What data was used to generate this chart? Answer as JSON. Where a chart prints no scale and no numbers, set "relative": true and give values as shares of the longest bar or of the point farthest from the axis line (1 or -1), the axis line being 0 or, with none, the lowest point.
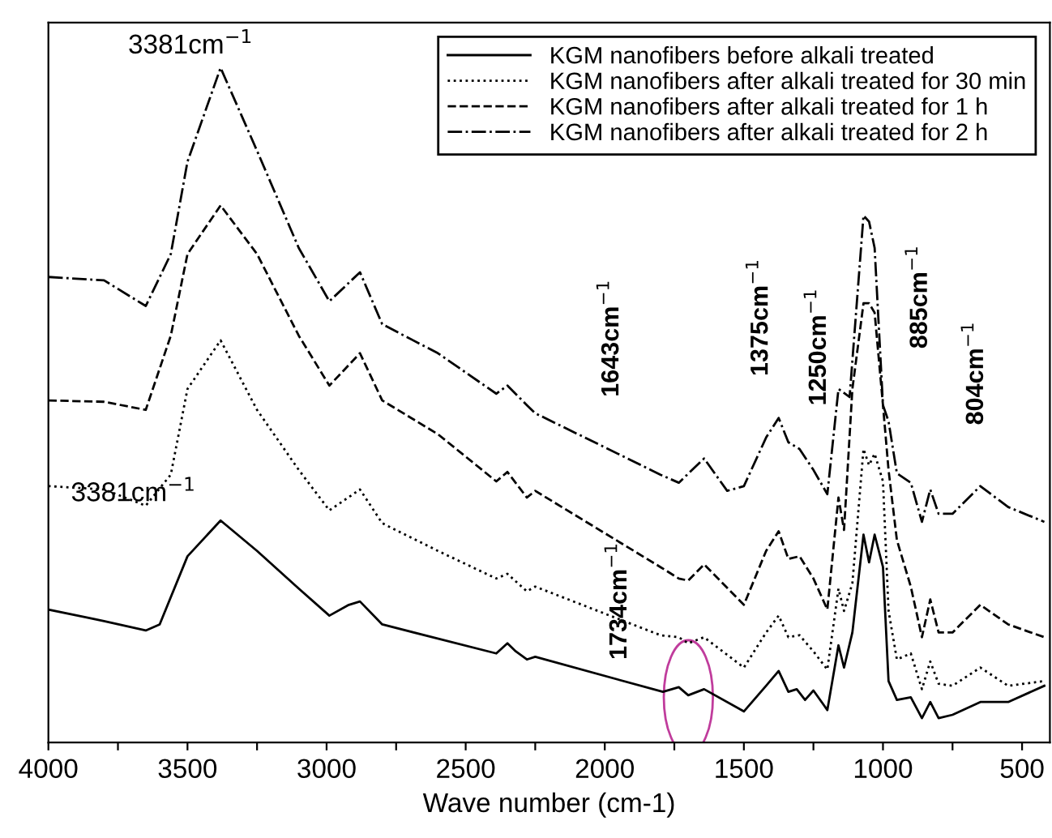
{
  "chart_data": {
    "type": "line",
    "relative": true,
    "xlabel": "Wave number (cm-1)",
    "xlim": [
      4000,
      400
    ],
    "xticks": [
      4000,
      {
        "value": 3750,
        "label": null
      },
      3500,
      {
        "value": 3250,
        "label": null
      },
      3000,
      {
        "value": 2750,
        "label": null
      },
      2500,
      {
        "value": 2250,
        "label": null
      },
      2000,
      {
        "value": 1750,
        "label": null
      },
      1500,
      {
        "value": 1250,
        "label": null
      },
      1000,
      {
        "value": 750,
        "label": null
      },
      500
    ],
    "tick_labels": "x",
    "grid": false,
    "legend": "top right",
    "marker": "none",
    "series": [
      {
        "name": "KGM nanofibers before alkali treated",
        "color": "#000000",
        "line_style": "solid",
        "x": [
          4000,
          3800,
          3650,
          3600,
          3500,
          3381,
          3250,
          3100,
          2990,
          2920,
          2880,
          2800,
          2390,
          2350,
          2320,
          2280,
          2250,
          1791,
          1734,
          1700,
          1643,
          1500,
          1420,
          1375,
          1340,
          1310,
          1280,
          1250,
          1200,
          1160,
          1140,
          1110,
          1070,
          1050,
          1030,
          1000,
          980,
          950,
          900,
          860,
          830,
          800,
          750,
          650,
          550,
          420
        ],
        "values": [
          0.197,
          0.18,
          0.166,
          0.175,
          0.276,
          0.329,
          0.284,
          0.228,
          0.188,
          0.204,
          0.209,
          0.175,
          0.132,
          0.147,
          0.135,
          0.123,
          0.127,
          0.075,
          0.082,
          0.07,
          0.079,
          0.046,
          0.084,
          0.106,
          0.075,
          0.079,
          0.063,
          0.077,
          0.048,
          0.144,
          0.111,
          0.163,
          0.308,
          0.267,
          0.308,
          0.26,
          0.091,
          0.063,
          0.067,
          0.036,
          0.06,
          0.036,
          0.041,
          0.06,
          0.06,
          0.084
        ]
      },
      {
        "name": "KGM nanofibers after alkali treated for 30 min",
        "color": "#000000",
        "line_style": "dotted",
        "x": [
          4000,
          3800,
          3650,
          3560,
          3500,
          3381,
          3250,
          3100,
          2990,
          2880,
          2800,
          2600,
          2390,
          2350,
          2280,
          2250,
          1800,
          1734,
          1700,
          1643,
          1500,
          1420,
          1375,
          1340,
          1300,
          1250,
          1200,
          1160,
          1140,
          1110,
          1070,
          1050,
          1030,
          1000,
          980,
          950,
          900,
          860,
          830,
          800,
          750,
          650,
          550,
          420
        ],
        "values": [
          0.38,
          0.375,
          0.351,
          0.397,
          0.524,
          0.596,
          0.493,
          0.404,
          0.344,
          0.375,
          0.325,
          0.284,
          0.243,
          0.25,
          0.224,
          0.231,
          0.159,
          0.156,
          0.147,
          0.156,
          0.111,
          0.163,
          0.188,
          0.156,
          0.159,
          0.135,
          0.108,
          0.228,
          0.195,
          0.236,
          0.435,
          0.411,
          0.428,
          0.387,
          0.195,
          0.123,
          0.132,
          0.079,
          0.12,
          0.087,
          0.084,
          0.111,
          0.084,
          0.091
        ]
      },
      {
        "name": "KGM nanofibers after alkali treated for 1 h",
        "color": "#000000",
        "line_style": "dashed",
        "x": [
          4000,
          3800,
          3650,
          3560,
          3500,
          3381,
          3250,
          3100,
          2990,
          2880,
          2800,
          2600,
          2390,
          2350,
          2280,
          2250,
          1800,
          1734,
          1700,
          1643,
          1500,
          1420,
          1375,
          1340,
          1300,
          1250,
          1200,
          1160,
          1140,
          1110,
          1070,
          1050,
          1030,
          1000,
          980,
          950,
          900,
          860,
          830,
          800,
          750,
          650,
          550,
          420
        ],
        "values": [
          0.507,
          0.505,
          0.493,
          0.603,
          0.724,
          0.796,
          0.724,
          0.603,
          0.529,
          0.577,
          0.507,
          0.457,
          0.387,
          0.401,
          0.363,
          0.373,
          0.26,
          0.243,
          0.24,
          0.264,
          0.204,
          0.284,
          0.313,
          0.272,
          0.276,
          0.243,
          0.197,
          0.363,
          0.315,
          0.524,
          0.651,
          0.651,
          0.637,
          0.5,
          0.404,
          0.3,
          0.231,
          0.156,
          0.212,
          0.163,
          0.163,
          0.204,
          0.175,
          0.156
        ]
      },
      {
        "name": "KGM nanofibers after alkali treated for 2 h",
        "color": "#000000",
        "line_style": "dashdot",
        "x": [
          4000,
          3800,
          3650,
          3560,
          3500,
          3381,
          3250,
          3100,
          2990,
          2880,
          2800,
          2600,
          2390,
          2350,
          2280,
          2250,
          1800,
          1734,
          1643,
          1560,
          1500,
          1420,
          1375,
          1340,
          1300,
          1250,
          1200,
          1160,
          1120,
          1070,
          1050,
          1030,
          1000,
          980,
          950,
          900,
          860,
          830,
          800,
          750,
          650,
          550,
          420
        ],
        "values": [
          0.69,
          0.685,
          0.647,
          0.724,
          0.861,
          1,
          0.877,
          0.733,
          0.654,
          0.697,
          0.62,
          0.577,
          0.517,
          0.529,
          0.5,
          0.488,
          0.397,
          0.385,
          0.421,
          0.373,
          0.38,
          0.452,
          0.481,
          0.445,
          0.435,
          0.404,
          0.368,
          0.524,
          0.512,
          0.781,
          0.772,
          0.733,
          0.5,
          0.476,
          0.399,
          0.385,
          0.327,
          0.375,
          0.339,
          0.339,
          0.38,
          0.349,
          0.327
        ]
      }
    ],
    "annotations": [
      "3381cm$^{−1}$",
      "3381cm$^{−1}$",
      "1643cm$^{−1}$",
      "1375cm$^{−1}$",
      "1250cm$^{−1}$",
      "885cm$^{−1}$",
      "804cm$^{−1}$",
      "1734cm$^{−1}$"
    ]
  }
}
